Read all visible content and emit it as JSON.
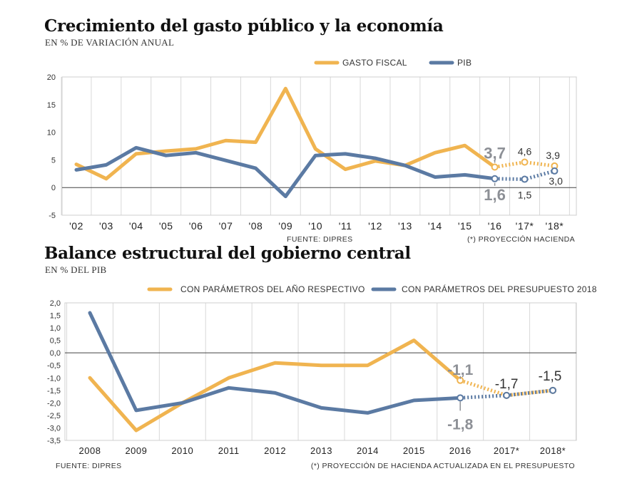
{
  "chart_data": [
    {
      "type": "line",
      "title": "Crecimiento del gasto público y la economía",
      "subtitle": "EN % DE VARIACIÓN ANUAL",
      "categories": [
        "'02",
        "'03",
        "'04",
        "'05",
        "'06",
        "'07",
        "'08",
        "'09",
        "'10",
        "'11",
        "'12",
        "'13",
        "'14",
        "'15",
        "'16",
        "'17*",
        "'18*"
      ],
      "ylim": [
        -5,
        20
      ],
      "yticks": [
        "20",
        "15",
        "10",
        "5",
        "0",
        "-5"
      ],
      "ytick_values": [
        20,
        15,
        10,
        5,
        0,
        -5
      ],
      "grid": true,
      "legend_position": "top-right",
      "projection_start_index": 14,
      "series": [
        {
          "name": "GASTO FISCAL",
          "color": "#f0b450",
          "values": [
            4.2,
            1.6,
            6.1,
            6.6,
            7.0,
            8.5,
            8.2,
            17.9,
            7.0,
            3.3,
            4.8,
            4.0,
            6.3,
            7.6,
            3.7,
            4.6,
            3.9
          ]
        },
        {
          "name": "PIB",
          "color": "#5b7aa3",
          "values": [
            3.2,
            4.1,
            7.2,
            5.8,
            6.3,
            4.9,
            3.5,
            -1.6,
            5.8,
            6.1,
            5.3,
            4.0,
            1.9,
            2.3,
            1.6,
            1.5,
            3.0
          ]
        }
      ],
      "annotations": [
        {
          "text": "3,7",
          "series": 0,
          "index": 14,
          "style": "big",
          "pos": "above"
        },
        {
          "text": "1,6",
          "series": 1,
          "index": 14,
          "style": "big",
          "pos": "below"
        },
        {
          "text": "4,6",
          "series": 0,
          "index": 15,
          "style": "small",
          "pos": "above"
        },
        {
          "text": "1,5",
          "series": 1,
          "index": 15,
          "style": "small",
          "pos": "below"
        },
        {
          "text": "3,9",
          "series": 0,
          "index": 16,
          "style": "small",
          "pos": "above"
        },
        {
          "text": "3,0",
          "series": 1,
          "index": 16,
          "style": "small",
          "pos": "below"
        }
      ],
      "source": "FUENTE: DIPRES",
      "footnote": "(*) PROYECCIÓN HACIENDA"
    },
    {
      "type": "line",
      "title": "Balance estructural del gobierno central",
      "subtitle": "EN % DEL PIB",
      "categories": [
        "2008",
        "2009",
        "2010",
        "2011",
        "2012",
        "2013",
        "2014",
        "2015",
        "2016",
        "2017*",
        "2018*"
      ],
      "ylim": [
        -3.5,
        2.0
      ],
      "yticks": [
        "2,0",
        "1,5",
        "1,0",
        "0,5",
        "0,0",
        "-0,5",
        "-1,0",
        "-1,5",
        "-2,0",
        "-2,5",
        "-3,0",
        "-3,5"
      ],
      "ytick_values": [
        2.0,
        1.5,
        1.0,
        0.5,
        0.0,
        -0.5,
        -1.0,
        -1.5,
        -2.0,
        -2.5,
        -3.0,
        -3.5
      ],
      "grid": true,
      "legend_position": "top-right",
      "projection_start_index": 8,
      "series": [
        {
          "name": "CON PARÁMETROS DEL AÑO RESPECTIVO",
          "color": "#f0b450",
          "values": [
            -1.0,
            -3.1,
            -2.0,
            -1.0,
            -0.4,
            -0.5,
            -0.5,
            0.5,
            -1.1,
            -1.7,
            -1.5
          ]
        },
        {
          "name": "CON PARÁMETROS DEL PRESUPUESTO 2018",
          "color": "#5b7aa3",
          "values": [
            1.6,
            -2.3,
            -2.0,
            -1.4,
            -1.6,
            -2.2,
            -2.4,
            -1.9,
            -1.8,
            -1.7,
            -1.5
          ]
        }
      ],
      "annotations": [
        {
          "text": "-1,1",
          "series": 0,
          "index": 8,
          "style": "big",
          "pos": "above"
        },
        {
          "text": "-1,8",
          "series": 1,
          "index": 8,
          "style": "big",
          "pos": "below"
        },
        {
          "text": "-1,7",
          "series": 0,
          "index": 9,
          "style": "mid",
          "pos": "above"
        },
        {
          "text": "-1,5",
          "series": 0,
          "index": 10,
          "style": "mid",
          "pos": "above"
        }
      ],
      "source": "FUENTE: DIPRES",
      "footnote": "(*) PROYECCIÓN DE HACIENDA ACTUALIZADA EN EL PRESUPUESTO"
    }
  ]
}
